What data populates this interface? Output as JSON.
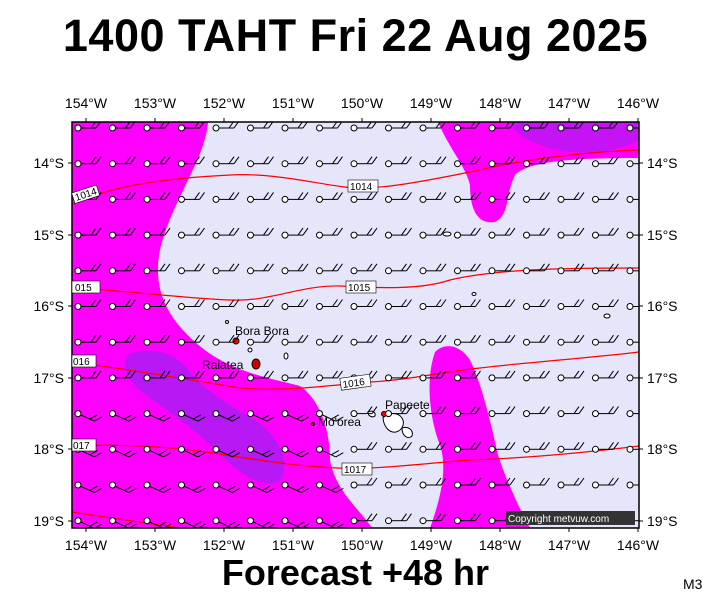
{
  "title": "1400 TAHT Fri 22 Aug 2025",
  "footer": "Forecast +48 hr",
  "model": "M3",
  "copyright": "Copyright metvuw.com",
  "lon_labels": [
    "154°W",
    "153°W",
    "152°W",
    "151°W",
    "150°W",
    "149°W",
    "148°W",
    "147°W",
    "146°W"
  ],
  "lat_labels": [
    "14°S",
    "15°S",
    "16°S",
    "17°S",
    "18°S",
    "19°S"
  ],
  "isobars": [
    {
      "label": "1014"
    },
    {
      "label": "1015"
    },
    {
      "label": "1016"
    },
    {
      "label": "1017"
    }
  ],
  "places": {
    "bora_bora": "Bora Bora",
    "raiatea": "Raiatea",
    "moorea": "Mo'orea",
    "papeete": "Papeete"
  },
  "colors": {
    "background": "#e6e6fa",
    "rain_light": "#ff00ff",
    "rain_heavy": "#a020f0",
    "isobar": "#ff0000"
  }
}
